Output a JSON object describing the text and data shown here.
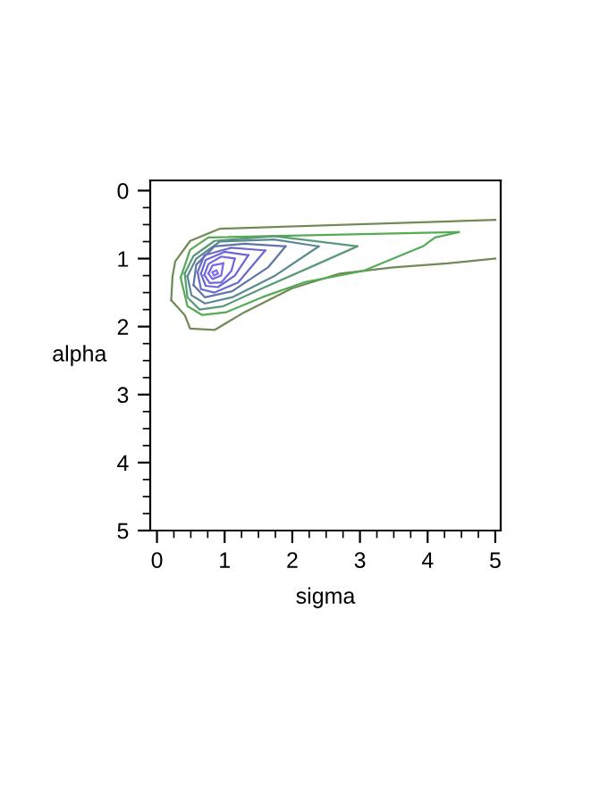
{
  "chart_data": {
    "type": "line",
    "xlabel": "sigma",
    "ylabel": "alpha",
    "xlim": [
      -0.1,
      5.08
    ],
    "ylim": [
      5,
      -0.15
    ],
    "xticks": [
      0,
      {
        "value": 0.25,
        "label": null
      },
      {
        "value": 0.5,
        "label": null
      },
      {
        "value": 0.75,
        "label": null
      },
      1,
      {
        "value": 1.25,
        "label": null
      },
      {
        "value": 1.5,
        "label": null
      },
      {
        "value": 1.75,
        "label": null
      },
      2,
      {
        "value": 2.25,
        "label": null
      },
      {
        "value": 2.5,
        "label": null
      },
      {
        "value": 2.75,
        "label": null
      },
      3,
      {
        "value": 3.25,
        "label": null
      },
      {
        "value": 3.5,
        "label": null
      },
      {
        "value": 3.75,
        "label": null
      },
      4,
      {
        "value": 4.25,
        "label": null
      },
      {
        "value": 4.5,
        "label": null
      },
      {
        "value": 4.75,
        "label": null
      },
      5
    ],
    "yticks": [
      0,
      {
        "value": 0.25,
        "label": null
      },
      {
        "value": 0.5,
        "label": null
      },
      {
        "value": 0.75,
        "label": null
      },
      1,
      {
        "value": 1.25,
        "label": null
      },
      {
        "value": 1.5,
        "label": null
      },
      {
        "value": 1.75,
        "label": null
      },
      2,
      {
        "value": 2.25,
        "label": null
      },
      {
        "value": 2.5,
        "label": null
      },
      {
        "value": 2.75,
        "label": null
      },
      3,
      {
        "value": 3.25,
        "label": null
      },
      {
        "value": 3.5,
        "label": null
      },
      {
        "value": 3.75,
        "label": null
      },
      4,
      {
        "value": 4.25,
        "label": null
      },
      {
        "value": 4.5,
        "label": null
      },
      {
        "value": 4.75,
        "label": null
      },
      5
    ],
    "grid": false,
    "legend": false,
    "marker": "none",
    "line_style": "solid",
    "series": [
      {
        "color": "#6f8a55",
        "x": [
          0.21,
          0.23,
          0.27,
          0.49,
          0.93,
          5.0
        ],
        "values": [
          1.61,
          1.26,
          1.04,
          0.74,
          0.56,
          0.43
        ]
      },
      {
        "color": "#6f8a55",
        "x": [
          0.21,
          0.41,
          0.49,
          0.85,
          1.29,
          1.99,
          2.7,
          3.49,
          4.29,
          5.0
        ],
        "values": [
          1.61,
          1.83,
          2.03,
          2.05,
          1.79,
          1.44,
          1.22,
          1.13,
          1.07,
          1.0
        ]
      },
      {
        "color": "#55aa55",
        "x": [
          0.35,
          0.49,
          0.76,
          4.46
        ],
        "values": [
          1.28,
          0.87,
          0.69,
          0.61
        ]
      },
      {
        "color": "#55aa55",
        "x": [
          0.35,
          0.45,
          0.67,
          1.02,
          1.55,
          2.17,
          3.05,
          3.93,
          4.11,
          4.46
        ],
        "values": [
          1.28,
          1.7,
          1.83,
          1.79,
          1.57,
          1.35,
          1.18,
          0.82,
          0.69,
          0.61
        ]
      },
      {
        "color": "#5a9a78",
        "x": [
          0.41,
          0.54,
          0.85,
          1.73,
          2.96
        ],
        "values": [
          1.22,
          0.96,
          0.74,
          0.67,
          0.82
        ]
      },
      {
        "color": "#5a9a78",
        "x": [
          0.41,
          0.45,
          0.63,
          0.98,
          1.55,
          2.35,
          2.96
        ],
        "values": [
          1.22,
          1.57,
          1.75,
          1.7,
          1.44,
          1.09,
          0.82
        ]
      },
      {
        "color": "#5a8a8f",
        "x": [
          0.45,
          0.58,
          0.93,
          1.73,
          2.39
        ],
        "values": [
          1.26,
          1.0,
          0.75,
          0.72,
          0.82
        ]
      },
      {
        "color": "#5a8a8f",
        "x": [
          0.45,
          0.51,
          0.71,
          1.11,
          1.73,
          2.39
        ],
        "values": [
          1.26,
          1.54,
          1.66,
          1.57,
          1.26,
          0.82
        ]
      },
      {
        "color": "#6075a5",
        "x": [
          0.54,
          0.58,
          0.85,
          1.29,
          1.9
        ],
        "values": [
          1.39,
          1.09,
          0.82,
          0.78,
          0.82
        ]
      },
      {
        "color": "#6075a5",
        "x": [
          0.54,
          0.71,
          1.11,
          1.64,
          1.9
        ],
        "values": [
          1.39,
          1.57,
          1.48,
          1.13,
          0.82
        ]
      },
      {
        "color": "#6a6ac8",
        "x": [
          0.6,
          0.7,
          1.1,
          1.6
        ],
        "values": [
          1.2,
          0.95,
          0.84,
          0.88
        ]
      },
      {
        "color": "#6a6ac8",
        "x": [
          0.6,
          0.65,
          0.85,
          1.2,
          1.6
        ],
        "values": [
          1.2,
          1.45,
          1.5,
          1.35,
          0.88
        ]
      },
      {
        "color": "#6a66d8",
        "x": [
          0.65,
          0.72,
          1.0,
          1.35
        ],
        "values": [
          1.22,
          1.02,
          0.9,
          0.95
        ]
      },
      {
        "color": "#6a66d8",
        "x": [
          0.65,
          0.72,
          0.9,
          1.15,
          1.35
        ],
        "values": [
          1.22,
          1.4,
          1.42,
          1.25,
          0.95
        ]
      },
      {
        "color": "#7066e0",
        "x": [
          0.7,
          0.76,
          0.95,
          1.15
        ],
        "values": [
          1.24,
          1.08,
          0.97,
          1.0
        ]
      },
      {
        "color": "#7066e0",
        "x": [
          0.7,
          0.78,
          0.95,
          1.1,
          1.15
        ],
        "values": [
          1.24,
          1.36,
          1.35,
          1.18,
          1.0
        ]
      },
      {
        "color": "#7868e8",
        "x": [
          0.76,
          0.82,
          0.98
        ],
        "values": [
          1.22,
          1.1,
          1.07
        ]
      },
      {
        "color": "#7a6aea",
        "x": [
          0.76,
          0.82,
          0.95,
          0.98
        ],
        "values": [
          1.22,
          1.3,
          1.25,
          1.07
        ]
      },
      {
        "color": "#8070f0",
        "x": [
          0.82,
          0.88,
          0.9
        ],
        "values": [
          1.2,
          1.17,
          1.22
        ]
      },
      {
        "color": "#8272f2",
        "x": [
          0.82,
          0.84,
          0.9
        ],
        "values": [
          1.2,
          1.25,
          1.22
        ]
      }
    ]
  }
}
